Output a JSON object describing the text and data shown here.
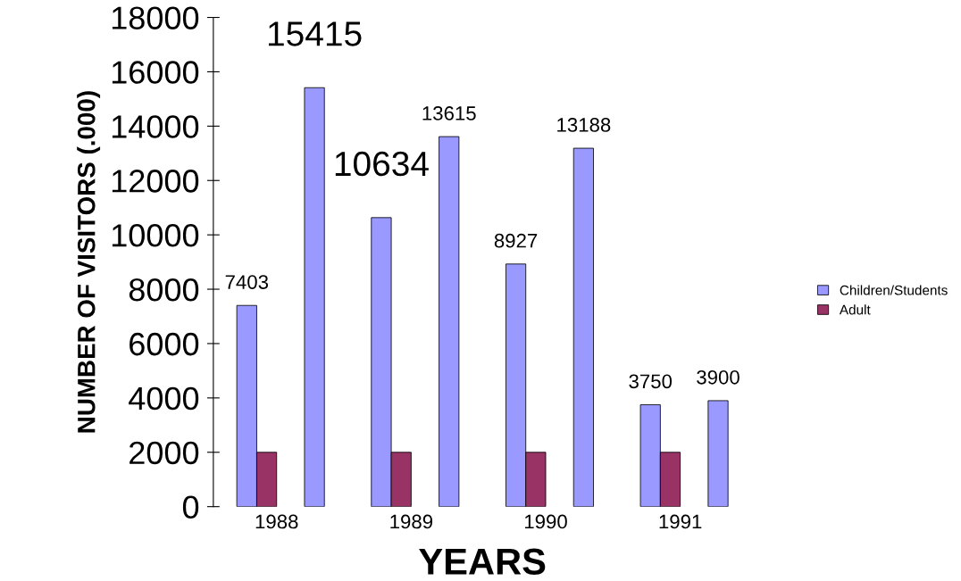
{
  "chart_data": {
    "type": "bar",
    "xlabel": "YEARS",
    "ylabel": "NUMBER OF VISITORS (.000)",
    "categories": [
      "1988",
      "1989",
      "1990",
      "1991"
    ],
    "series": [
      {
        "name": "Children/Students",
        "color": "#9999ff",
        "values": [
          7403,
          10634,
          8927,
          3750
        ],
        "value_labels": [
          "7403",
          "10634",
          "8927",
          "3750"
        ]
      },
      {
        "name": "Adult",
        "color": "#993366",
        "values": [
          2000,
          2000,
          2000,
          2000
        ]
      },
      {
        "color": "#9999ff",
        "values": [
          15415,
          13615,
          13188,
          3900
        ],
        "value_labels": [
          "15415",
          "13615",
          "13188",
          "3900"
        ]
      }
    ],
    "ylim": [
      0,
      18000
    ],
    "yticks": [
      0,
      2000,
      4000,
      6000,
      8000,
      10000,
      12000,
      14000,
      16000,
      18000
    ],
    "grid": false,
    "legend": "right"
  }
}
